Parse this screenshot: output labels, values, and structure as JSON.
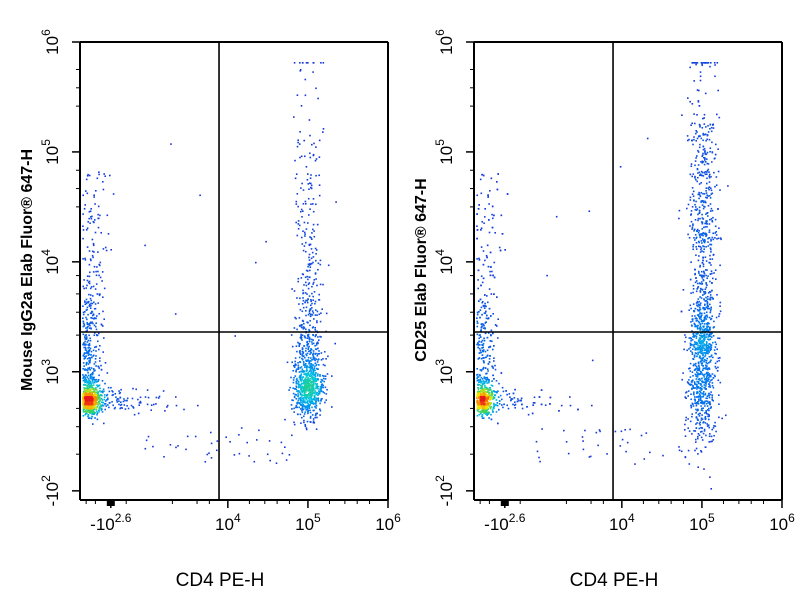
{
  "chart_data": [
    {
      "type": "scatter",
      "subtype": "flow-cytometry-density-dot-plot",
      "title": "",
      "xlabel": "CD4 PE-H",
      "ylabel": "Mouse IgG2a Elab Fluor® 647-H",
      "x_scale": "biexponential (log)",
      "y_scale": "biexponential (log)",
      "x_ticks": [
        {
          "base": "-10",
          "exp": "2.6"
        },
        {
          "base": "10",
          "exp": "4"
        },
        {
          "base": "10",
          "exp": "5"
        },
        {
          "base": "10",
          "exp": "6"
        }
      ],
      "y_ticks": [
        {
          "base": "-10",
          "exp": "2"
        },
        {
          "base": "10",
          "exp": "3"
        },
        {
          "base": "10",
          "exp": "4"
        },
        {
          "base": "10",
          "exp": "5"
        },
        {
          "base": "10",
          "exp": "6"
        }
      ],
      "quadrant_gate": {
        "x": 5000,
        "y": 2300
      },
      "populations": [
        {
          "name": "",
          "x_center": -400,
          "y_center": 150,
          "events": 1400
        },
        {
          "name": "",
          "x_center": 100000,
          "y_center": 300,
          "events": 1100
        }
      ],
      "grid": false,
      "legend": "none"
    },
    {
      "type": "scatter",
      "subtype": "flow-cytometry-density-dot-plot",
      "title": "",
      "xlabel": "CD4 PE-H",
      "ylabel": "CD25 Elab Fluor® 647-H",
      "x_scale": "biexponential (log)",
      "y_scale": "biexponential (log)",
      "x_ticks": [
        {
          "base": "-10",
          "exp": "2.6"
        },
        {
          "base": "10",
          "exp": "4"
        },
        {
          "base": "10",
          "exp": "5"
        },
        {
          "base": "10",
          "exp": "6"
        }
      ],
      "y_ticks": [
        {
          "base": "-10",
          "exp": "2"
        },
        {
          "base": "10",
          "exp": "3"
        },
        {
          "base": "10",
          "exp": "4"
        },
        {
          "base": "10",
          "exp": "5"
        },
        {
          "base": "10",
          "exp": "6"
        }
      ],
      "quadrant_gate": {
        "x": 5000,
        "y": 2300
      },
      "populations": [
        {
          "name": "",
          "x_center": -400,
          "y_center": 150,
          "events": 1400
        },
        {
          "name": "",
          "x_center": 100000,
          "y_center": 1500,
          "events": 1400
        }
      ],
      "grid": false,
      "legend": "none"
    }
  ],
  "colors": {
    "density_low": "#1a2fd6",
    "density_mid": "#00c8e0",
    "density_high": "#f5e600",
    "density_peak": "#e8141e",
    "axis": "#000000",
    "background": "#ffffff"
  }
}
